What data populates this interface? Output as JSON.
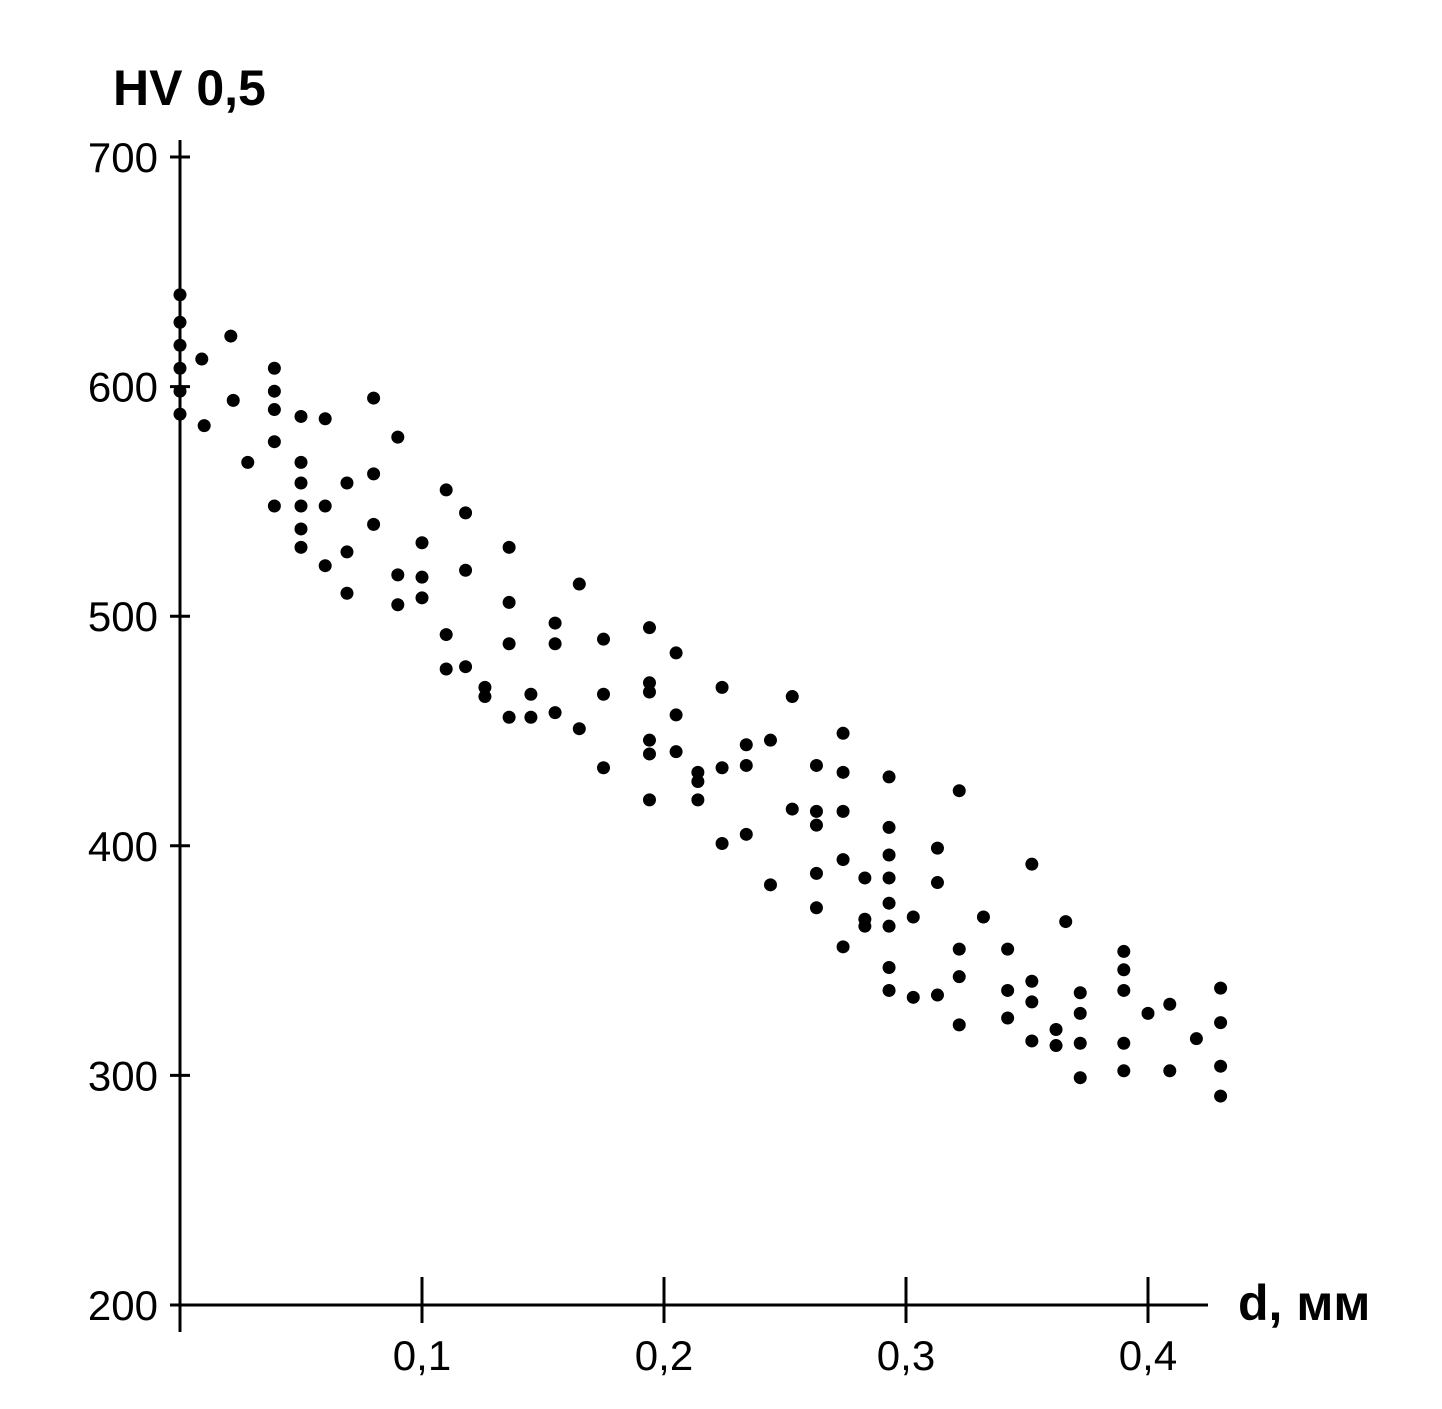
{
  "chart_data": {
    "type": "scatter",
    "title": "",
    "ylabel": "HV 0,5",
    "xlabel": "d, мм",
    "xlim": [
      0,
      0.425
    ],
    "ylim": [
      200,
      700
    ],
    "x_ticks": [
      0.1,
      0.2,
      0.3,
      0.4
    ],
    "x_tick_labels": [
      "0,1",
      "0,2",
      "0,3",
      "0,4"
    ],
    "y_ticks": [
      200,
      300,
      400,
      500,
      600,
      700
    ],
    "y_tick_labels": [
      "200",
      "300",
      "400",
      "500",
      "600",
      "700"
    ],
    "grid": false,
    "legend": "none",
    "series": [
      {
        "points": [
          [
            0.0,
            640
          ],
          [
            0.0,
            628
          ],
          [
            0.0,
            618
          ],
          [
            0.0,
            608
          ],
          [
            0.0,
            598
          ],
          [
            0.0,
            588
          ],
          [
            0.009,
            612
          ],
          [
            0.01,
            583
          ],
          [
            0.021,
            622
          ],
          [
            0.022,
            594
          ],
          [
            0.028,
            567
          ],
          [
            0.039,
            608
          ],
          [
            0.039,
            598
          ],
          [
            0.039,
            590
          ],
          [
            0.039,
            576
          ],
          [
            0.039,
            548
          ],
          [
            0.05,
            587
          ],
          [
            0.05,
            567
          ],
          [
            0.05,
            558
          ],
          [
            0.05,
            548
          ],
          [
            0.05,
            538
          ],
          [
            0.05,
            530
          ],
          [
            0.06,
            586
          ],
          [
            0.06,
            548
          ],
          [
            0.06,
            522
          ],
          [
            0.069,
            558
          ],
          [
            0.069,
            528
          ],
          [
            0.069,
            510
          ],
          [
            0.08,
            595
          ],
          [
            0.08,
            562
          ],
          [
            0.08,
            540
          ],
          [
            0.09,
            578
          ],
          [
            0.09,
            518
          ],
          [
            0.09,
            505
          ],
          [
            0.1,
            532
          ],
          [
            0.1,
            517
          ],
          [
            0.1,
            508
          ],
          [
            0.11,
            555
          ],
          [
            0.11,
            492
          ],
          [
            0.11,
            477
          ],
          [
            0.118,
            545
          ],
          [
            0.118,
            520
          ],
          [
            0.118,
            478
          ],
          [
            0.126,
            469
          ],
          [
            0.126,
            465
          ],
          [
            0.136,
            530
          ],
          [
            0.136,
            506
          ],
          [
            0.136,
            488
          ],
          [
            0.136,
            456
          ],
          [
            0.145,
            466
          ],
          [
            0.145,
            456
          ],
          [
            0.155,
            497
          ],
          [
            0.155,
            488
          ],
          [
            0.155,
            458
          ],
          [
            0.165,
            514
          ],
          [
            0.165,
            451
          ],
          [
            0.175,
            490
          ],
          [
            0.175,
            466
          ],
          [
            0.175,
            434
          ],
          [
            0.194,
            495
          ],
          [
            0.194,
            471
          ],
          [
            0.194,
            467
          ],
          [
            0.194,
            446
          ],
          [
            0.194,
            440
          ],
          [
            0.194,
            420
          ],
          [
            0.205,
            484
          ],
          [
            0.205,
            457
          ],
          [
            0.205,
            441
          ],
          [
            0.214,
            432
          ],
          [
            0.214,
            428
          ],
          [
            0.214,
            420
          ],
          [
            0.224,
            469
          ],
          [
            0.224,
            434
          ],
          [
            0.224,
            401
          ],
          [
            0.234,
            444
          ],
          [
            0.234,
            435
          ],
          [
            0.234,
            405
          ],
          [
            0.244,
            446
          ],
          [
            0.244,
            383
          ],
          [
            0.253,
            465
          ],
          [
            0.253,
            416
          ],
          [
            0.263,
            435
          ],
          [
            0.263,
            415
          ],
          [
            0.263,
            409
          ],
          [
            0.263,
            388
          ],
          [
            0.263,
            373
          ],
          [
            0.274,
            449
          ],
          [
            0.274,
            432
          ],
          [
            0.274,
            415
          ],
          [
            0.274,
            394
          ],
          [
            0.274,
            356
          ],
          [
            0.283,
            386
          ],
          [
            0.283,
            368
          ],
          [
            0.283,
            365
          ],
          [
            0.293,
            430
          ],
          [
            0.293,
            408
          ],
          [
            0.293,
            396
          ],
          [
            0.293,
            386
          ],
          [
            0.293,
            375
          ],
          [
            0.293,
            365
          ],
          [
            0.293,
            347
          ],
          [
            0.293,
            337
          ],
          [
            0.303,
            369
          ],
          [
            0.303,
            334
          ],
          [
            0.313,
            399
          ],
          [
            0.313,
            384
          ],
          [
            0.313,
            335
          ],
          [
            0.322,
            424
          ],
          [
            0.322,
            355
          ],
          [
            0.322,
            343
          ],
          [
            0.322,
            322
          ],
          [
            0.332,
            369
          ],
          [
            0.342,
            355
          ],
          [
            0.342,
            337
          ],
          [
            0.342,
            325
          ],
          [
            0.352,
            392
          ],
          [
            0.352,
            341
          ],
          [
            0.352,
            332
          ],
          [
            0.352,
            315
          ],
          [
            0.362,
            320
          ],
          [
            0.362,
            313
          ],
          [
            0.366,
            367
          ],
          [
            0.372,
            336
          ],
          [
            0.372,
            327
          ],
          [
            0.372,
            314
          ],
          [
            0.372,
            299
          ],
          [
            0.39,
            354
          ],
          [
            0.39,
            346
          ],
          [
            0.39,
            337
          ],
          [
            0.39,
            314
          ],
          [
            0.39,
            302
          ],
          [
            0.4,
            327
          ],
          [
            0.409,
            331
          ],
          [
            0.409,
            302
          ],
          [
            0.42,
            316
          ],
          [
            0.43,
            338
          ],
          [
            0.43,
            323
          ],
          [
            0.43,
            304
          ],
          [
            0.43,
            291
          ]
        ]
      }
    ]
  }
}
